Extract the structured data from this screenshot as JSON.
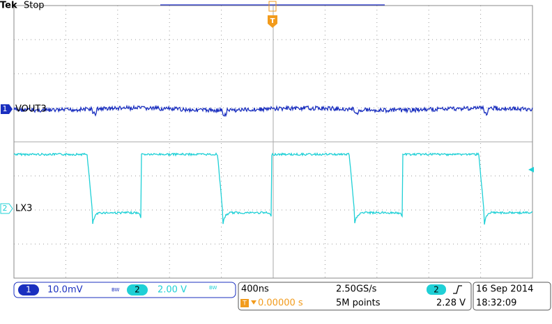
{
  "header": {
    "brand": "Tek",
    "status": "Stop"
  },
  "channels": [
    {
      "number": "1",
      "label": "VOUT3",
      "scale": "10.0mV"
    },
    {
      "number": "2",
      "label": "LX3",
      "scale": "2.00 V"
    }
  ],
  "trigger": {
    "marker": "T",
    "channel": "2",
    "level": "2.28 V",
    "position": "0.00000 s"
  },
  "timebase": {
    "scale": "400ns",
    "sample_rate": "2.50GS/s",
    "record_length": "5M points"
  },
  "datetime": {
    "date": "16 Sep 2014",
    "time": "18:32:09"
  },
  "bandwidth_mark": "BW"
}
